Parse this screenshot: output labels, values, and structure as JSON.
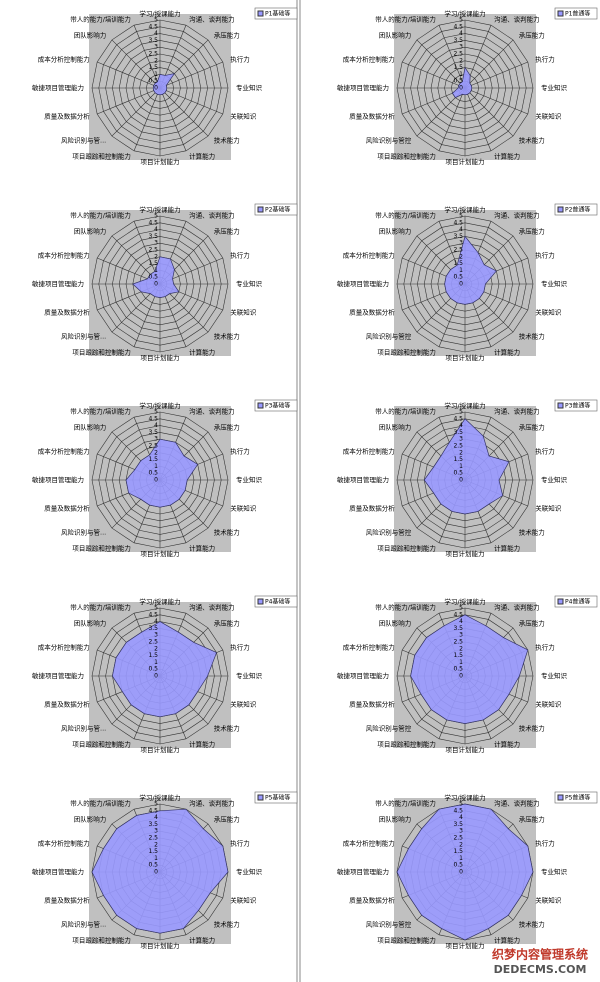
{
  "chart_data": [
    {
      "type": "radar",
      "categories": [
        "学习/授课能力",
        "沟通、谈判能力",
        "承压能力",
        "执行力",
        "专业知识",
        "关联知识",
        "技术能力",
        "计算能力",
        "项目计划能力",
        "项目跟踪和控制能力",
        "风险识别与管...",
        "质量及数据分析",
        "敏捷项目管理能力",
        "成本分析控制能力",
        "团队影响力",
        "带人的能力/培训能力"
      ],
      "series": [
        {
          "name": "P1基础等",
          "color": "#9999ff",
          "values": [
            1,
            1,
            1.5,
            0.5,
            0.5,
            0.5,
            0.5,
            0.5,
            0.5,
            0.5,
            0.5,
            0.5,
            0.5,
            0.5,
            0.5,
            0.5
          ]
        }
      ],
      "ylim": [
        0,
        5
      ],
      "yticks": [
        0,
        0.5,
        1,
        1.5,
        2,
        2.5,
        3,
        3.5,
        4,
        4.5,
        5
      ]
    },
    {
      "type": "radar",
      "categories": [
        "学习/授课能力",
        "沟通、谈判能力",
        "承压能力",
        "执行力",
        "专业知识",
        "关联知识",
        "技术能力",
        "计算能力",
        "项目计划能力",
        "项目跟踪和控制能力",
        "风险识别与管控",
        "质量及数据分析",
        "敏捷项目管理能力",
        "成本分析控制能力",
        "团队影响力",
        "带人的能力/培训能力"
      ],
      "series": [
        {
          "name": "P1普通等",
          "color": "#9999ff",
          "values": [
            1.5,
            1,
            0.5,
            0.5,
            0.5,
            0.5,
            0.5,
            0.5,
            0.5,
            0.5,
            1,
            1,
            0.5,
            0.5,
            0.5,
            0.5
          ]
        }
      ],
      "ylim": [
        0,
        5
      ],
      "yticks": [
        0,
        0.5,
        1,
        1.5,
        2,
        2.5,
        3,
        3.5,
        4,
        4.5,
        5
      ]
    },
    {
      "type": "radar",
      "categories": [
        "学习/授课能力",
        "沟通、谈判能力",
        "承压能力",
        "执行力",
        "专业知识",
        "关联知识",
        "技术能力",
        "计算能力",
        "项目计划能力",
        "项目跟踪和控制能力",
        "风险识别与管...",
        "质量及数据分析",
        "敏捷项目管理能力",
        "成本分析控制能力",
        "团队影响力",
        "带人的能力/培训能力"
      ],
      "series": [
        {
          "name": "P2基础等",
          "color": "#9999ff",
          "values": [
            2,
            2,
            1.5,
            1,
            1,
            1.5,
            1,
            1,
            1,
            1,
            1,
            1.5,
            2,
            1,
            1,
            1
          ]
        }
      ],
      "ylim": [
        0,
        5
      ],
      "yticks": [
        0,
        0.5,
        1,
        1.5,
        2,
        2.5,
        3,
        3.5,
        4,
        4.5,
        5
      ]
    },
    {
      "type": "radar",
      "categories": [
        "学习/授课能力",
        "沟通、谈判能力",
        "承压能力",
        "执行力",
        "专业知识",
        "关联知识",
        "技术能力",
        "计算能力",
        "项目计划能力",
        "项目跟踪和控制能力",
        "风险识别与管控",
        "质量及数据分析",
        "敏捷项目管理能力",
        "成本分析控制能力",
        "团队影响力",
        "带人的能力/培训能力"
      ],
      "series": [
        {
          "name": "P2普通等",
          "color": "#9999ff",
          "values": [
            3.5,
            2.5,
            2,
            2.5,
            1.5,
            1.5,
            1.5,
            1.5,
            1.5,
            1.5,
            1.5,
            1.5,
            1.5,
            1.5,
            1.5,
            1.5
          ]
        }
      ],
      "ylim": [
        0,
        5
      ],
      "yticks": [
        0,
        0.5,
        1,
        1.5,
        2,
        2.5,
        3,
        3.5,
        4,
        4.5,
        5
      ]
    },
    {
      "type": "radar",
      "categories": [
        "学习/授课能力",
        "沟通、谈判能力",
        "承压能力",
        "执行力",
        "专业知识",
        "关联知识",
        "技术能力",
        "计算能力",
        "项目计划能力",
        "项目跟踪和控制能力",
        "风险识别与管...",
        "质量及数据分析",
        "敏捷项目管理能力",
        "成本分析控制能力",
        "团队影响力",
        "带人的能力/培训能力"
      ],
      "series": [
        {
          "name": "P3基础等",
          "color": "#9999ff",
          "values": [
            3,
            3,
            2.5,
            3,
            2,
            2,
            2,
            2,
            2,
            2,
            2,
            2.5,
            2.5,
            2,
            2,
            2
          ]
        }
      ],
      "ylim": [
        0,
        5
      ],
      "yticks": [
        0,
        0.5,
        1,
        1.5,
        2,
        2.5,
        3,
        3.5,
        4,
        4.5,
        5
      ]
    },
    {
      "type": "radar",
      "categories": [
        "学习/授课能力",
        "沟通、谈判能力",
        "承压能力",
        "执行力",
        "专业知识",
        "关联知识",
        "技术能力",
        "计算能力",
        "项目计划能力",
        "项目跟踪和控制能力",
        "风险识别与管控",
        "质量及数据分析",
        "敏捷项目管理能力",
        "成本分析控制能力",
        "团队影响力",
        "带人的能力/培训能力"
      ],
      "series": [
        {
          "name": "P3普通等",
          "color": "#9999ff",
          "values": [
            4.5,
            3.5,
            2.5,
            3.5,
            2.5,
            3,
            2.5,
            2.5,
            2.5,
            2.5,
            2.5,
            2.5,
            3,
            2.5,
            2.5,
            3
          ]
        }
      ],
      "ylim": [
        0,
        5
      ],
      "yticks": [
        0,
        0.5,
        1,
        1.5,
        2,
        2.5,
        3,
        3.5,
        4,
        4.5,
        5
      ]
    },
    {
      "type": "radar",
      "categories": [
        "学习/授课能力",
        "沟通、谈判能力",
        "承压能力",
        "执行力",
        "专业知识",
        "关联知识",
        "技术能力",
        "计算能力",
        "项目计划能力",
        "项目跟踪和控制能力",
        "风险识别与管...",
        "质量及数据分析",
        "敏捷项目管理能力",
        "成本分析控制能力",
        "团队影响力",
        "带人的能力/培训能力"
      ],
      "series": [
        {
          "name": "P4基础等",
          "color": "#9999ff",
          "values": [
            4,
            3.5,
            3.5,
            4.5,
            3.5,
            3,
            3,
            3,
            3,
            3,
            3,
            3,
            3.5,
            3.5,
            3.5,
            3.5
          ]
        }
      ],
      "ylim": [
        0,
        5
      ],
      "yticks": [
        0,
        0.5,
        1,
        1.5,
        2,
        2.5,
        3,
        3.5,
        4,
        4.5,
        5
      ]
    },
    {
      "type": "radar",
      "categories": [
        "学习/授课能力",
        "沟通、谈判能力",
        "承压能力",
        "执行力",
        "专业知识",
        "关联知识",
        "技术能力",
        "计算能力",
        "项目计划能力",
        "项目跟踪和控制能力",
        "风险识别与管控",
        "质量及数据分析",
        "敏捷项目管理能力",
        "成本分析控制能力",
        "团队影响力",
        "带人的能力/培训能力"
      ],
      "series": [
        {
          "name": "P4普通等",
          "color": "#9999ff",
          "values": [
            4.5,
            4,
            4,
            5,
            4,
            3.5,
            3.5,
            3.5,
            3.5,
            3.5,
            3.5,
            3.5,
            4,
            4,
            4,
            4
          ]
        }
      ],
      "ylim": [
        0,
        5
      ],
      "yticks": [
        0,
        0.5,
        1,
        1.5,
        2,
        2.5,
        3,
        3.5,
        4,
        4.5,
        5
      ]
    },
    {
      "type": "radar",
      "categories": [
        "学习/授课能力",
        "沟通、谈判能力",
        "承压能力",
        "执行力",
        "专业知识",
        "关联知识",
        "技术能力",
        "计算能力",
        "项目计划能力",
        "项目跟踪和控制能力",
        "风险识别与管...",
        "质量及数据分析",
        "敏捷项目管理能力",
        "成本分析控制能力",
        "团队影响力",
        "带人的能力/培训能力"
      ],
      "series": [
        {
          "name": "P5基础等",
          "color": "#9999ff",
          "values": [
            4.5,
            5,
            4.5,
            5,
            5,
            4,
            4,
            4.5,
            4.5,
            4.5,
            4.5,
            4.5,
            5,
            4.5,
            4.5,
            4.5
          ]
        }
      ],
      "ylim": [
        0,
        5
      ],
      "yticks": [
        0,
        0.5,
        1,
        1.5,
        2,
        2.5,
        3,
        3.5,
        4,
        4.5,
        5
      ]
    },
    {
      "type": "radar",
      "categories": [
        "学习/授课能力",
        "沟通、谈判能力",
        "承压能力",
        "执行力",
        "专业知识",
        "关联知识",
        "技术能力",
        "计算能力",
        "项目计划能力",
        "项目跟踪和控制能力",
        "风险识别与管控",
        "质量及数据分析",
        "敏捷项目管理能力",
        "成本分析控制能力",
        "团队影响力",
        "带人的能力/培训能力"
      ],
      "series": [
        {
          "name": "P5普通等",
          "color": "#9999ff",
          "values": [
            5,
            5,
            4.5,
            5,
            5,
            4.5,
            4.5,
            4.5,
            5,
            4.5,
            4.5,
            4.5,
            5,
            4.5,
            4.5,
            5
          ]
        }
      ],
      "ylim": [
        0,
        5
      ],
      "yticks": [
        0,
        0.5,
        1,
        1.5,
        2,
        2.5,
        3,
        3.5,
        4,
        4.5,
        5
      ]
    }
  ],
  "watermark": {
    "title": "织梦内容管理系统",
    "site": "DEDECMS.COM"
  }
}
